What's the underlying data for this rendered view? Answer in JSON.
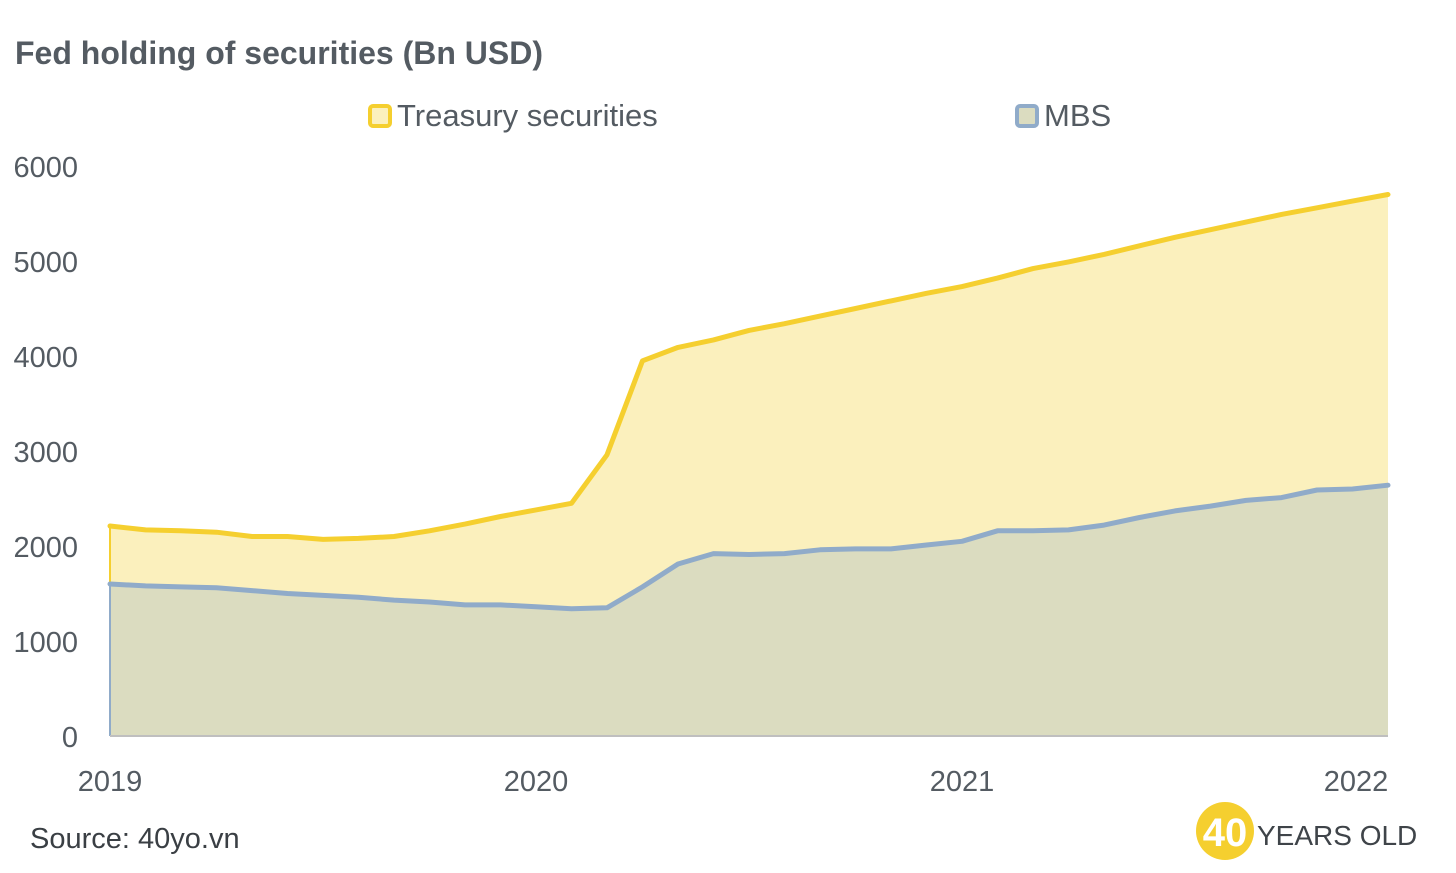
{
  "chart_data": {
    "type": "area",
    "title": "Fed holding of securities (Bn USD)",
    "xlabel": "",
    "ylabel": "",
    "x_tick_labels": [
      "2019",
      "2020",
      "2021",
      "2022"
    ],
    "y_tick_labels": [
      "0",
      "1000",
      "2000",
      "3000",
      "4000",
      "5000",
      "6000"
    ],
    "ylim": [
      0,
      6000
    ],
    "xlim": [
      0,
      36
    ],
    "x_unit": "months since Jan 2019",
    "stacked": false,
    "legend_position": "top",
    "series": [
      {
        "name": "Treasury securities",
        "line_color": "#f5cf2f",
        "fill_color": "#fbf0bd",
        "x": [
          0,
          1,
          2,
          3,
          4,
          5,
          6,
          7,
          8,
          9,
          10,
          11,
          12,
          13,
          14,
          15,
          16,
          17,
          18,
          19,
          20,
          21,
          22,
          23,
          24,
          25,
          26,
          27,
          28,
          29,
          30,
          31,
          32,
          33,
          34,
          35,
          36
        ],
        "values": [
          2210,
          2170,
          2160,
          2145,
          2100,
          2100,
          2070,
          2080,
          2100,
          2160,
          2230,
          2310,
          2380,
          2450,
          2960,
          3950,
          4090,
          4170,
          4270,
          4340,
          4420,
          4500,
          4580,
          4660,
          4730,
          4820,
          4920,
          4990,
          5070,
          5160,
          5250,
          5330,
          5410,
          5490,
          5560,
          5630,
          5700
        ]
      },
      {
        "name": "MBS",
        "line_color": "#90abc9",
        "fill_color": "#dbdcc0",
        "x": [
          0,
          1,
          2,
          3,
          4,
          5,
          6,
          7,
          8,
          9,
          10,
          11,
          12,
          13,
          14,
          15,
          16,
          17,
          18,
          19,
          20,
          21,
          22,
          23,
          24,
          25,
          26,
          27,
          28,
          29,
          30,
          31,
          32,
          33,
          34,
          35,
          36
        ],
        "values": [
          1600,
          1580,
          1570,
          1560,
          1530,
          1500,
          1480,
          1460,
          1430,
          1410,
          1380,
          1380,
          1360,
          1340,
          1350,
          1570,
          1810,
          1920,
          1910,
          1920,
          1960,
          1970,
          1970,
          2010,
          2050,
          2160,
          2160,
          2170,
          2220,
          2300,
          2370,
          2420,
          2480,
          2510,
          2590,
          2600,
          2640
        ]
      }
    ]
  },
  "source": "Source: 40yo.vn",
  "brand": {
    "badge_number": "40",
    "text": "YEARS OLD",
    "badge_color": "#f5cf2f"
  },
  "colors": {
    "text": "#545b62",
    "axis": "#bfbfbf"
  }
}
